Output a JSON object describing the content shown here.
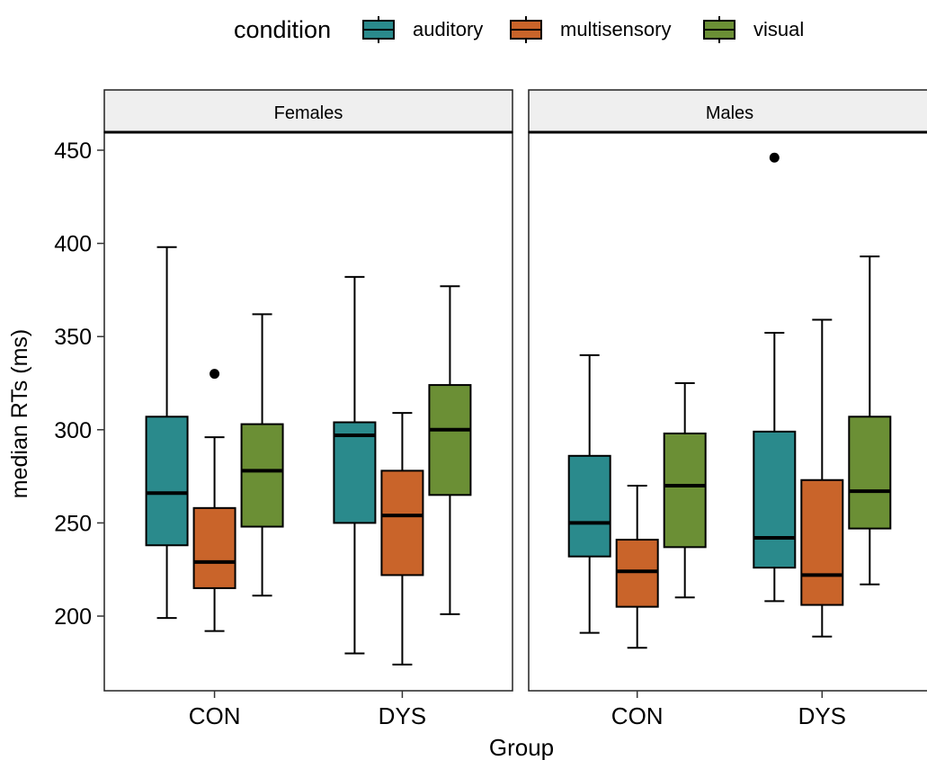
{
  "chart_data": {
    "type": "boxplot",
    "xlabel": "Group",
    "ylabel": "median RTs (ms)",
    "ylim": [
      165,
      460
    ],
    "yticks": [
      200,
      250,
      300,
      350,
      400,
      450
    ],
    "categories": [
      "CON",
      "DYS"
    ],
    "legend": {
      "title": "condition",
      "position": "top",
      "items": [
        {
          "label": "auditory",
          "color": "#2a8a8c"
        },
        {
          "label": "multisensory",
          "color": "#c9642a"
        },
        {
          "label": "visual",
          "color": "#6b8f35"
        }
      ]
    },
    "facets": [
      {
        "label": "Females",
        "groups": [
          {
            "category": "CON",
            "boxes": [
              {
                "condition": "auditory",
                "whisker_low": 199,
                "q1": 238,
                "median": 266,
                "q3": 307,
                "whisker_high": 398,
                "outliers": []
              },
              {
                "condition": "multisensory",
                "whisker_low": 192,
                "q1": 215,
                "median": 229,
                "q3": 258,
                "whisker_high": 296,
                "outliers": [
                  330
                ]
              },
              {
                "condition": "visual",
                "whisker_low": 211,
                "q1": 248,
                "median": 278,
                "q3": 303,
                "whisker_high": 362,
                "outliers": []
              }
            ]
          },
          {
            "category": "DYS",
            "boxes": [
              {
                "condition": "auditory",
                "whisker_low": 180,
                "q1": 250,
                "median": 297,
                "q3": 304,
                "whisker_high": 382,
                "outliers": []
              },
              {
                "condition": "multisensory",
                "whisker_low": 174,
                "q1": 222,
                "median": 254,
                "q3": 278,
                "whisker_high": 309,
                "outliers": []
              },
              {
                "condition": "visual",
                "whisker_low": 201,
                "q1": 265,
                "median": 300,
                "q3": 324,
                "whisker_high": 377,
                "outliers": []
              }
            ]
          }
        ]
      },
      {
        "label": "Males",
        "groups": [
          {
            "category": "CON",
            "boxes": [
              {
                "condition": "auditory",
                "whisker_low": 191,
                "q1": 232,
                "median": 250,
                "q3": 286,
                "whisker_high": 340,
                "outliers": []
              },
              {
                "condition": "multisensory",
                "whisker_low": 183,
                "q1": 205,
                "median": 224,
                "q3": 241,
                "whisker_high": 270,
                "outliers": []
              },
              {
                "condition": "visual",
                "whisker_low": 210,
                "q1": 237,
                "median": 270,
                "q3": 298,
                "whisker_high": 325,
                "outliers": []
              }
            ]
          },
          {
            "category": "DYS",
            "boxes": [
              {
                "condition": "auditory",
                "whisker_low": 208,
                "q1": 226,
                "median": 242,
                "q3": 299,
                "whisker_high": 352,
                "outliers": [
                  446
                ]
              },
              {
                "condition": "multisensory",
                "whisker_low": 189,
                "q1": 206,
                "median": 222,
                "q3": 273,
                "whisker_high": 359,
                "outliers": []
              },
              {
                "condition": "visual",
                "whisker_low": 217,
                "q1": 247,
                "median": 267,
                "q3": 307,
                "whisker_high": 393,
                "outliers": []
              }
            ]
          }
        ]
      }
    ]
  }
}
